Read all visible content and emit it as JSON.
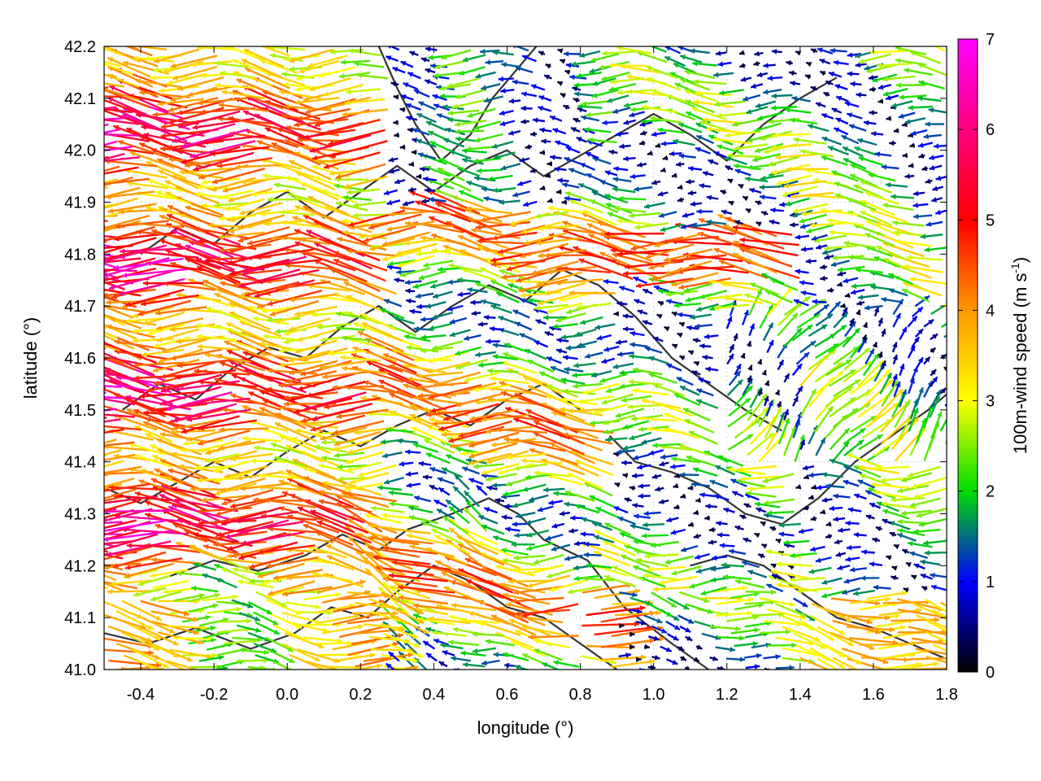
{
  "chart_data": {
    "type": "vector-field",
    "xlabel": "longitude (°)",
    "ylabel": "latitude (°)",
    "xlim": [
      -0.5,
      1.8
    ],
    "ylim": [
      41.0,
      42.2
    ],
    "x_ticks": [
      -0.4,
      -0.2,
      0.0,
      0.2,
      0.4,
      0.6,
      0.8,
      1.0,
      1.2,
      1.4,
      1.6,
      1.8
    ],
    "x_tick_labels": [
      "-0.4",
      "-0.2",
      "0.0",
      "0.2",
      "0.4",
      "0.6",
      "0.8",
      "1.0",
      "1.2",
      "1.4",
      "1.6",
      "1.8"
    ],
    "y_ticks": [
      41.0,
      41.1,
      41.2,
      41.3,
      41.4,
      41.5,
      41.6,
      41.7,
      41.8,
      41.9,
      42.0,
      42.1,
      42.2
    ],
    "y_tick_labels": [
      "41.0",
      "41.1",
      "41.2",
      "41.3",
      "41.4",
      "41.5",
      "41.6",
      "41.7",
      "41.8",
      "41.9",
      "42.0",
      "42.1",
      "42.2"
    ],
    "grid": true,
    "colorbar": {
      "label_main": "100m-wind speed (m s",
      "label_sup": "-1",
      "label_end": ")",
      "range": [
        0,
        7
      ],
      "ticks": [
        0,
        1,
        2,
        3,
        4,
        5,
        6,
        7
      ],
      "tick_labels": [
        "0",
        "1",
        "2",
        "3",
        "4",
        "5",
        "6",
        "7"
      ],
      "colors": [
        "#000000",
        "#0000ff",
        "#00dd00",
        "#ffff00",
        "#ff9900",
        "#ff0000",
        "#ff00ff"
      ]
    },
    "contour_color": "#333333",
    "contours": [
      [
        [
          -0.32,
          41.18
        ],
        [
          -0.2,
          41.21
        ],
        [
          -0.08,
          41.19
        ],
        [
          0.05,
          41.22
        ],
        [
          0.15,
          41.26
        ],
        [
          0.25,
          41.23
        ],
        [
          0.33,
          41.27
        ],
        [
          0.45,
          41.3
        ],
        [
          0.55,
          41.33
        ],
        [
          0.63,
          41.3
        ],
        [
          0.7,
          41.25
        ],
        [
          0.82,
          41.21
        ],
        [
          0.92,
          41.12
        ],
        [
          1.05,
          41.05
        ],
        [
          1.15,
          41.0
        ]
      ],
      [
        [
          -0.5,
          41.07
        ],
        [
          -0.38,
          41.05
        ],
        [
          -0.25,
          41.08
        ],
        [
          -0.1,
          41.04
        ],
        [
          0.02,
          41.07
        ],
        [
          0.12,
          41.12
        ],
        [
          0.22,
          41.1
        ],
        [
          0.3,
          41.15
        ],
        [
          0.4,
          41.2
        ],
        [
          0.5,
          41.17
        ],
        [
          0.6,
          41.12
        ],
        [
          0.7,
          41.1
        ],
        [
          0.8,
          41.05
        ],
        [
          0.9,
          41.0
        ]
      ],
      [
        [
          -0.45,
          41.5
        ],
        [
          -0.35,
          41.55
        ],
        [
          -0.25,
          41.52
        ],
        [
          -0.15,
          41.58
        ],
        [
          -0.05,
          41.62
        ],
        [
          0.05,
          41.6
        ],
        [
          0.15,
          41.66
        ],
        [
          0.25,
          41.7
        ],
        [
          0.35,
          41.65
        ],
        [
          0.45,
          41.7
        ],
        [
          0.55,
          41.74
        ],
        [
          0.65,
          41.71
        ],
        [
          0.75,
          41.77
        ],
        [
          0.85,
          41.74
        ],
        [
          0.95,
          41.68
        ],
        [
          1.05,
          41.6
        ],
        [
          1.15,
          41.55
        ],
        [
          1.25,
          41.5
        ],
        [
          1.35,
          41.46
        ]
      ],
      [
        [
          -0.4,
          41.8
        ],
        [
          -0.3,
          41.85
        ],
        [
          -0.2,
          41.82
        ],
        [
          -0.1,
          41.88
        ],
        [
          0.0,
          41.92
        ],
        [
          0.1,
          41.87
        ],
        [
          0.2,
          41.92
        ],
        [
          0.3,
          41.97
        ],
        [
          0.4,
          41.92
        ],
        [
          0.5,
          41.97
        ],
        [
          0.6,
          42.0
        ],
        [
          0.7,
          41.95
        ],
        [
          0.8,
          41.99
        ],
        [
          0.9,
          42.03
        ],
        [
          1.0,
          42.07
        ],
        [
          1.1,
          42.03
        ],
        [
          1.2,
          41.98
        ],
        [
          1.3,
          42.05
        ],
        [
          1.4,
          42.1
        ],
        [
          1.5,
          42.14
        ]
      ],
      [
        [
          0.25,
          42.2
        ],
        [
          0.3,
          42.12
        ],
        [
          0.35,
          42.05
        ],
        [
          0.42,
          41.98
        ],
        [
          0.5,
          42.03
        ],
        [
          0.56,
          42.1
        ],
        [
          0.62,
          42.15
        ],
        [
          0.68,
          42.2
        ]
      ],
      [
        [
          0.88,
          41.45
        ],
        [
          0.95,
          41.4
        ],
        [
          1.05,
          41.38
        ],
        [
          1.15,
          41.35
        ],
        [
          1.25,
          41.3
        ],
        [
          1.35,
          41.28
        ],
        [
          1.45,
          41.33
        ],
        [
          1.55,
          41.4
        ],
        [
          1.65,
          41.45
        ],
        [
          1.75,
          41.5
        ],
        [
          1.8,
          41.53
        ]
      ],
      [
        [
          1.1,
          41.2
        ],
        [
          1.2,
          41.22
        ],
        [
          1.3,
          41.2
        ],
        [
          1.4,
          41.15
        ],
        [
          1.5,
          41.1
        ],
        [
          1.6,
          41.08
        ],
        [
          1.7,
          41.05
        ],
        [
          1.8,
          41.02
        ]
      ],
      [
        [
          -0.5,
          41.35
        ],
        [
          -0.4,
          41.32
        ],
        [
          -0.3,
          41.36
        ],
        [
          -0.2,
          41.4
        ],
        [
          -0.1,
          41.37
        ],
        [
          0.0,
          41.42
        ],
        [
          0.1,
          41.46
        ],
        [
          0.2,
          41.43
        ],
        [
          0.3,
          41.47
        ],
        [
          0.4,
          41.5
        ],
        [
          0.5,
          41.47
        ],
        [
          0.6,
          41.52
        ],
        [
          0.7,
          41.55
        ],
        [
          0.8,
          41.5
        ]
      ]
    ]
  }
}
